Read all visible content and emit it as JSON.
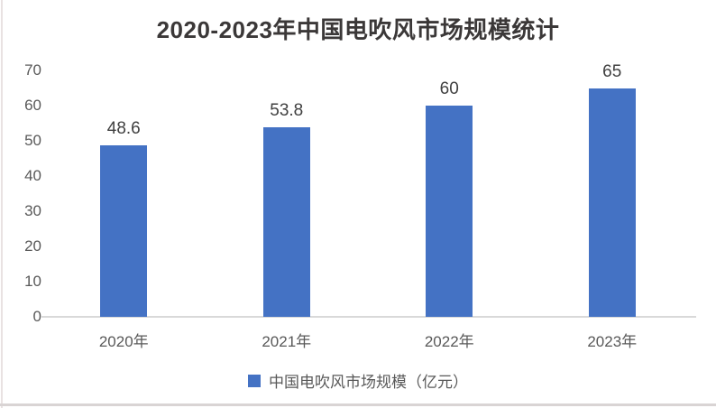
{
  "title": "2020-2023年中国电吹风市场规模统计",
  "legend": {
    "label": "中国电吹风市场规模（亿元）"
  },
  "colors": {
    "bar": "#4472C4",
    "axis_line": "#d9d9d9",
    "tick_label": "#595959",
    "category_label": "#595959",
    "data_label": "#404040",
    "title": "#3b3838",
    "legend_label": "#595959",
    "edge_left": "#e9e2e2",
    "edge_bottom": "#d9d4d4"
  },
  "chart_data": {
    "type": "bar",
    "title": "2020-2023年中国电吹风市场规模统计",
    "categories": [
      "2020年",
      "2021年",
      "2022年",
      "2023年"
    ],
    "values": [
      48.6,
      53.8,
      60,
      65
    ],
    "data_labels": [
      "48.6",
      "53.8",
      "60",
      "65"
    ],
    "series_name": "中国电吹风市场规模（亿元）",
    "xlabel": "",
    "ylabel": "",
    "ylim": [
      0,
      70
    ],
    "y_ticks": [
      0,
      10,
      20,
      30,
      40,
      50,
      60,
      70
    ],
    "grid": false,
    "legend_position": "bottom",
    "unit": "亿元"
  }
}
